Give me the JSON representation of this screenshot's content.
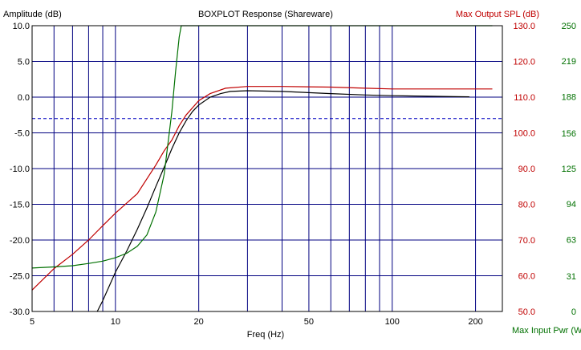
{
  "chart_data": {
    "type": "line",
    "title": "BOXPLOT Response (Shareware)",
    "xlabel": "Freq (Hz)",
    "x_scale": "log",
    "xlim": [
      5,
      250
    ],
    "x_major_ticks": [
      5,
      10,
      20,
      50,
      100,
      200
    ],
    "x_minor_gridlines": [
      6,
      7,
      8,
      9,
      30,
      40,
      60,
      70,
      80,
      90
    ],
    "grid": true,
    "axes": {
      "amplitude": {
        "label": "Amplitude (dB)",
        "side": "left",
        "range": [
          -30,
          10
        ],
        "ticks": [
          10,
          5,
          0,
          -5,
          -10,
          -15,
          -20,
          -25,
          -30
        ],
        "tick_labels": [
          "10.0",
          "5.0",
          "0.0",
          "-5.0",
          "-10.0",
          "-15.0",
          "-20.0",
          "-25.0",
          "-30.0"
        ],
        "color": "#000000"
      },
      "spl": {
        "label": "Max Output SPL (dB)",
        "side": "right",
        "range": [
          50,
          130
        ],
        "ticks": [
          130,
          120,
          110,
          100,
          90,
          80,
          70,
          60,
          50
        ],
        "tick_labels": [
          "130.0",
          "120.0",
          "110.0",
          "100.0",
          "90.0",
          "80.0",
          "70.0",
          "60.0",
          "50.0"
        ],
        "color": "#c00000"
      },
      "power": {
        "label": "Max Input Pwr (W)",
        "side": "right",
        "range": [
          0,
          250
        ],
        "ticks": [
          250,
          219,
          188,
          156,
          125,
          94,
          63,
          31,
          0
        ],
        "tick_labels": [
          "250",
          "219",
          "188",
          "156",
          "125",
          "94",
          "63",
          "31",
          "0"
        ],
        "color": "#007000"
      }
    },
    "reference_line": {
      "axis": "amplitude",
      "value": -3,
      "style": "dashed",
      "color": "#0000c0"
    },
    "series": [
      {
        "axis": "amplitude",
        "color": "#000000",
        "points": [
          [
            8.6,
            -30
          ],
          [
            9,
            -28.5
          ],
          [
            10,
            -24.5
          ],
          [
            11,
            -21.5
          ],
          [
            12,
            -18.5
          ],
          [
            13,
            -15.5
          ],
          [
            14,
            -12.5
          ],
          [
            15,
            -9.8
          ],
          [
            16,
            -7.2
          ],
          [
            17,
            -5
          ],
          [
            18,
            -3.3
          ],
          [
            19,
            -2
          ],
          [
            20,
            -1.1
          ],
          [
            22,
            0
          ],
          [
            24,
            0.5
          ],
          [
            26,
            0.8
          ],
          [
            30,
            0.9
          ],
          [
            40,
            0.8
          ],
          [
            60,
            0.5
          ],
          [
            80,
            0.3
          ],
          [
            100,
            0.2
          ],
          [
            150,
            0.1
          ],
          [
            190,
            0.05
          ]
        ]
      },
      {
        "axis": "spl",
        "color": "#c00000",
        "points": [
          [
            5,
            56
          ],
          [
            6,
            62
          ],
          [
            7,
            66
          ],
          [
            8,
            70
          ],
          [
            9,
            74
          ],
          [
            10,
            77.5
          ],
          [
            12,
            83
          ],
          [
            14,
            91
          ],
          [
            15,
            95
          ],
          [
            16,
            98
          ],
          [
            17,
            102
          ],
          [
            18,
            105
          ],
          [
            20,
            109
          ],
          [
            22,
            111
          ],
          [
            25,
            112.5
          ],
          [
            30,
            113
          ],
          [
            40,
            113
          ],
          [
            60,
            112.8
          ],
          [
            80,
            112.5
          ],
          [
            100,
            112.3
          ],
          [
            150,
            112.3
          ],
          [
            230,
            112.3
          ]
        ]
      },
      {
        "axis": "power",
        "color": "#007000",
        "points": [
          [
            5,
            38
          ],
          [
            6,
            39
          ],
          [
            7,
            40
          ],
          [
            8,
            42
          ],
          [
            9,
            44
          ],
          [
            10,
            47
          ],
          [
            11,
            51
          ],
          [
            12,
            57
          ],
          [
            13,
            67
          ],
          [
            14,
            87
          ],
          [
            15,
            120
          ],
          [
            16,
            175
          ],
          [
            16.5,
            210
          ],
          [
            17,
            240
          ],
          [
            17.3,
            250
          ],
          [
            230,
            250
          ]
        ]
      }
    ]
  }
}
